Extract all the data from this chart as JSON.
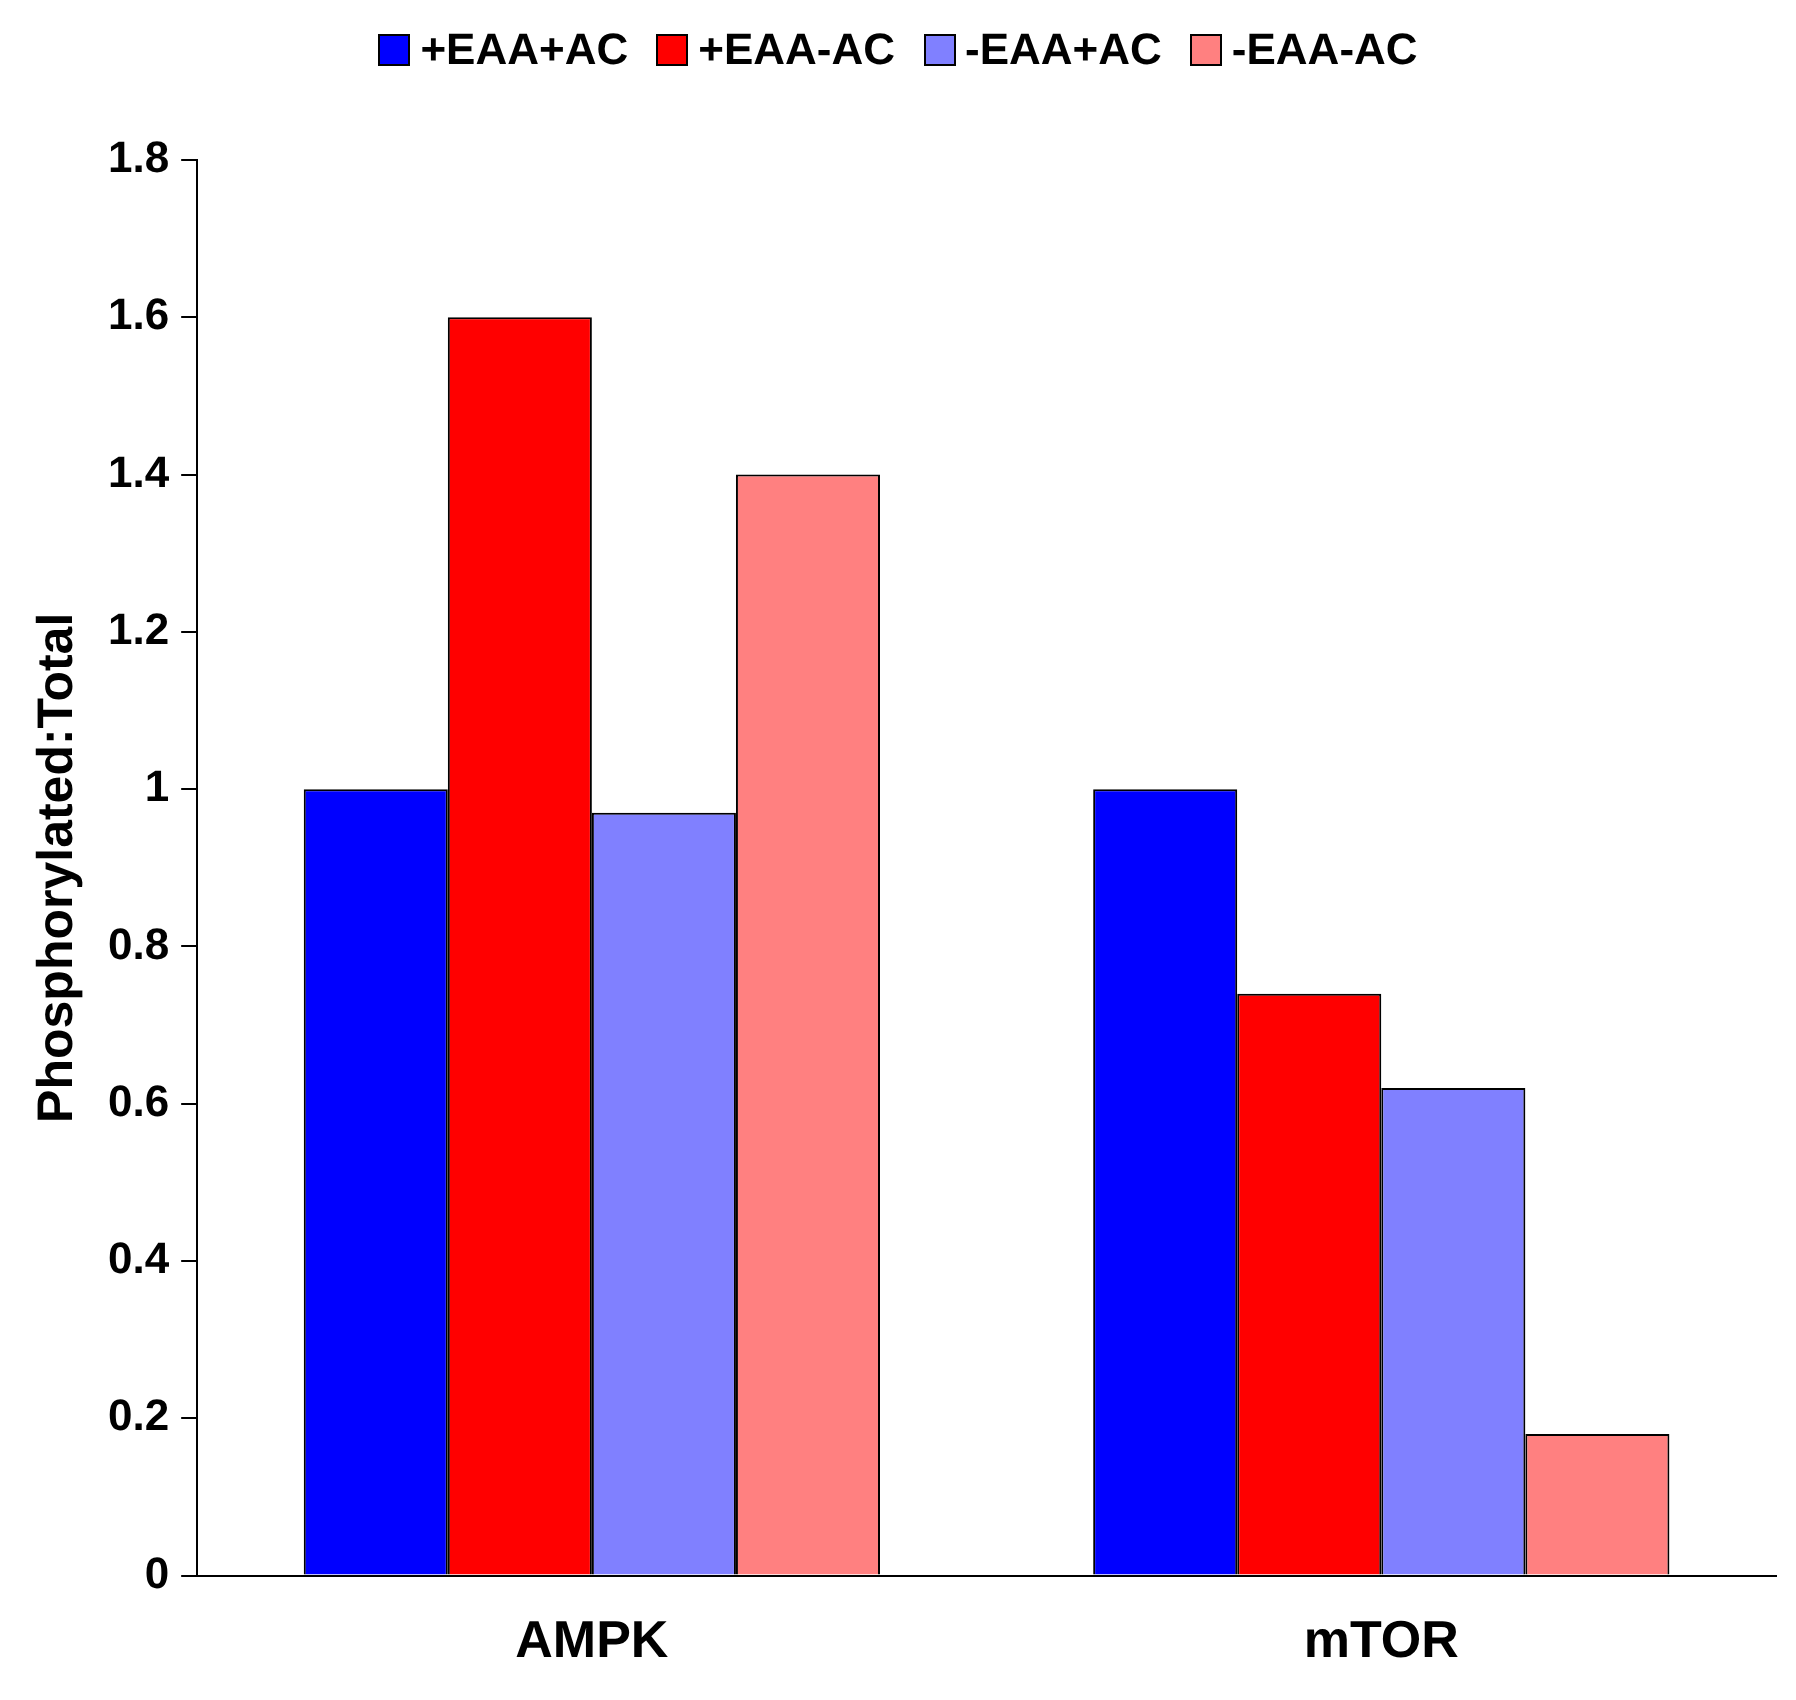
{
  "chart_data": {
    "type": "bar",
    "ylabel": "Phosphorylated:Total",
    "categories": [
      "AMPK",
      "mTOR"
    ],
    "series": [
      {
        "name": "+EAA+AC",
        "color": "#0000ff",
        "values": [
          1.0,
          1.0
        ]
      },
      {
        "name": "+EAA-AC",
        "color": "#ff0000",
        "values": [
          1.6,
          0.74
        ]
      },
      {
        "name": "-EAA+AC",
        "color": "#8080ff",
        "values": [
          0.97,
          0.62
        ]
      },
      {
        "name": "-EAA-AC",
        "color": "#ff8080",
        "values": [
          1.4,
          0.18
        ]
      }
    ],
    "ylim": [
      0,
      1.8
    ],
    "yticks": [
      0,
      0.2,
      0.4,
      0.6,
      0.8,
      1,
      1.2,
      1.4,
      1.6,
      1.8
    ],
    "grid": false,
    "legend": "top"
  }
}
